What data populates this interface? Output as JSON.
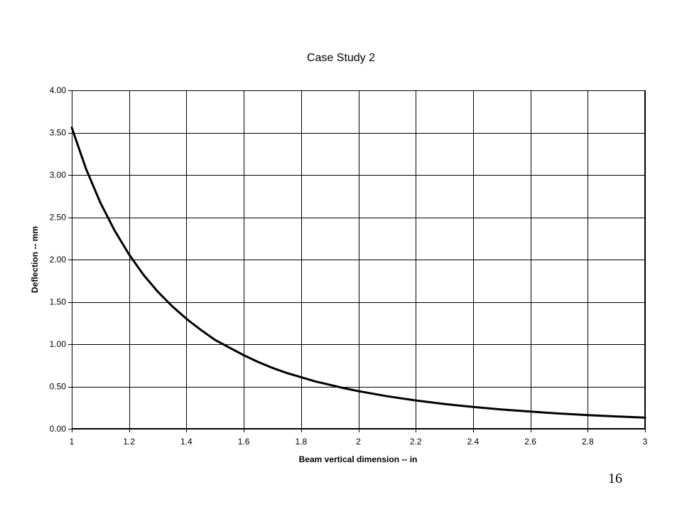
{
  "page_number": "16",
  "chart_data": {
    "type": "line",
    "title": "Case Study 2",
    "xlabel": "Beam vertical dimension -- in",
    "ylabel": "Deflection -- mm",
    "xlim": [
      1,
      3
    ],
    "ylim": [
      0,
      4
    ],
    "x_ticks": [
      1,
      1.2,
      1.4,
      1.6,
      1.8,
      2,
      2.2,
      2.4,
      2.6,
      2.8,
      3
    ],
    "x_tick_labels": [
      "1",
      "1.2",
      "1.4",
      "1.6",
      "1.8",
      "2",
      "2.2",
      "2.4",
      "2.6",
      "2.8",
      "3"
    ],
    "y_ticks": [
      0,
      0.5,
      1,
      1.5,
      2,
      2.5,
      3,
      3.5,
      4
    ],
    "y_tick_labels": [
      "0.00",
      "0.50",
      "1.00",
      "1.50",
      "2.00",
      "2.50",
      "3.00",
      "3.50",
      "4.00"
    ],
    "grid": true,
    "legend": "none",
    "colors": {
      "line": "#000000",
      "grid": "#000000",
      "background": "#ffffff"
    },
    "series": [
      {
        "x": [
          1.0,
          1.05,
          1.1,
          1.15,
          1.2,
          1.25,
          1.3,
          1.35,
          1.4,
          1.45,
          1.5,
          1.55,
          1.6,
          1.65,
          1.7,
          1.75,
          1.8,
          1.85,
          1.9,
          1.95,
          2.0,
          2.1,
          2.2,
          2.3,
          2.4,
          2.5,
          2.6,
          2.7,
          2.8,
          2.9,
          3.0
        ],
        "y": [
          3.56,
          3.07,
          2.67,
          2.34,
          2.06,
          1.82,
          1.62,
          1.45,
          1.3,
          1.17,
          1.05,
          0.96,
          0.87,
          0.79,
          0.72,
          0.66,
          0.61,
          0.56,
          0.52,
          0.48,
          0.445,
          0.385,
          0.335,
          0.293,
          0.258,
          0.228,
          0.203,
          0.181,
          0.162,
          0.146,
          0.132
        ]
      }
    ]
  }
}
